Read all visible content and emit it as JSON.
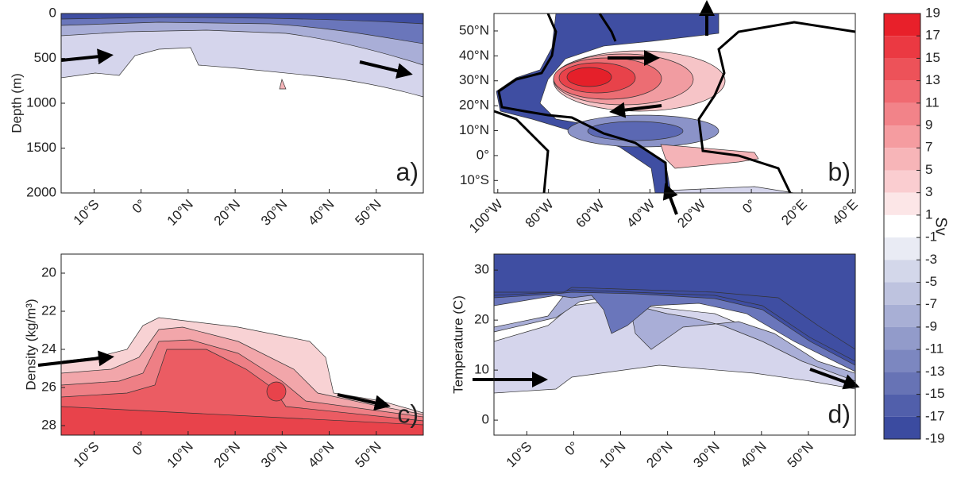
{
  "chart_data": [
    {
      "type": "contour",
      "panel_label": "a)",
      "ylabel": "Depth (m)",
      "xlim": [
        -17,
        60
      ],
      "ylim": [
        2000,
        0
      ],
      "yticks": [
        0,
        500,
        1000,
        1500,
        2000
      ],
      "xticks": [
        {
          "value": -10,
          "label": "10°S"
        },
        {
          "value": 0,
          "label": "0°"
        },
        {
          "value": 10,
          "label": "10°N"
        },
        {
          "value": 20,
          "label": "20°N"
        },
        {
          "value": 30,
          "label": "30°N"
        },
        {
          "value": 40,
          "label": "40°N"
        },
        {
          "value": 50,
          "label": "50°N"
        }
      ]
    },
    {
      "type": "map",
      "panel_label": "b)",
      "xlim": [
        -101.5,
        41
      ],
      "ylim": [
        -15,
        57
      ],
      "xticks": [
        {
          "value": -100,
          "label": "100°W"
        },
        {
          "value": -80,
          "label": "80°W"
        },
        {
          "value": -60,
          "label": "60°W"
        },
        {
          "value": -40,
          "label": "40°W"
        },
        {
          "value": -20,
          "label": "20°W"
        },
        {
          "value": 0,
          "label": "0°"
        },
        {
          "value": 20,
          "label": "20°E"
        },
        {
          "value": 40,
          "label": "40°E"
        }
      ],
      "yticks": [
        {
          "value": -10,
          "label": "10°S"
        },
        {
          "value": 0,
          "label": "0°"
        },
        {
          "value": 10,
          "label": "10°N"
        },
        {
          "value": 20,
          "label": "20°N"
        },
        {
          "value": 30,
          "label": "30°N"
        },
        {
          "value": 40,
          "label": "40°N"
        },
        {
          "value": 50,
          "label": "50°N"
        }
      ]
    },
    {
      "type": "contour",
      "panel_label": "c)",
      "ylabel": "Density (kg/m³)",
      "xlim": [
        -17,
        60
      ],
      "ylim": [
        28.5,
        19
      ],
      "yticks": [
        20,
        22,
        24,
        26,
        28
      ],
      "xticks": [
        {
          "value": -10,
          "label": "10°S"
        },
        {
          "value": 0,
          "label": "0°"
        },
        {
          "value": 10,
          "label": "10°N"
        },
        {
          "value": 20,
          "label": "20°N"
        },
        {
          "value": 30,
          "label": "30°N"
        },
        {
          "value": 40,
          "label": "40°N"
        },
        {
          "value": 50,
          "label": "50°N"
        }
      ]
    },
    {
      "type": "contour",
      "panel_label": "d)",
      "ylabel": "Temperature (C)",
      "xlim": [
        -17,
        60
      ],
      "ylim": [
        -3,
        33.2
      ],
      "yticks": [
        0,
        10,
        20,
        30
      ],
      "xticks": [
        {
          "value": -10,
          "label": "10°S"
        },
        {
          "value": 0,
          "label": "0°"
        },
        {
          "value": 10,
          "label": "10°N"
        },
        {
          "value": 20,
          "label": "20°N"
        },
        {
          "value": 30,
          "label": "30°N"
        },
        {
          "value": 40,
          "label": "40°N"
        },
        {
          "value": 50,
          "label": "50°N"
        }
      ]
    },
    {
      "type": "colorbar",
      "label": "Sv",
      "clim": [
        -19,
        19
      ],
      "cmap": [
        "#3b4ba0",
        "#ffffff",
        "#e8202a"
      ],
      "ticks": [
        19,
        17,
        15,
        13,
        11,
        9,
        7,
        5,
        3,
        1,
        -1,
        -3,
        -5,
        -7,
        -9,
        -11,
        -13,
        -15,
        -17,
        -19
      ]
    }
  ]
}
